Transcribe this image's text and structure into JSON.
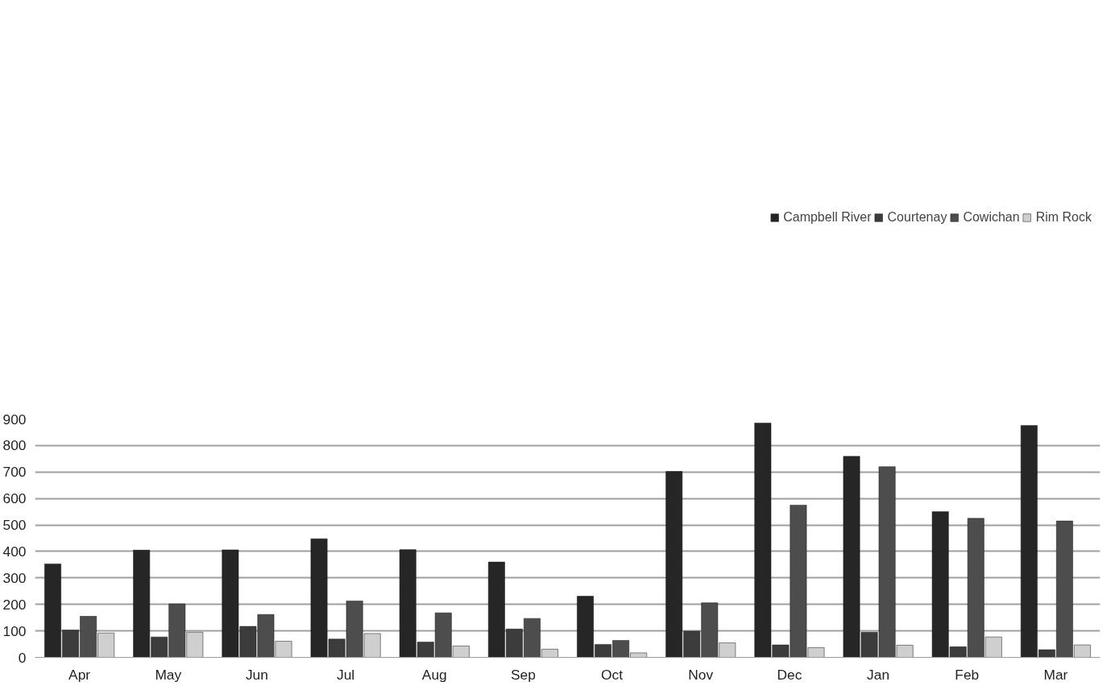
{
  "chart_data": {
    "type": "bar",
    "categories": [
      "Apr",
      "May",
      "Jun",
      "Jul",
      "Aug",
      "Sep",
      "Oct",
      "Nov",
      "Dec",
      "Jan",
      "Feb",
      "Mar"
    ],
    "series": [
      {
        "name": "Campbell River",
        "color": "#262626",
        "values": [
          353,
          405,
          406,
          448,
          407,
          360,
          231,
          702,
          885,
          759,
          550,
          876
        ]
      },
      {
        "name": "Courtenay",
        "color": "#3c3c3c",
        "values": [
          103,
          77,
          117,
          69,
          58,
          107,
          49,
          99,
          47,
          95,
          40,
          29
        ]
      },
      {
        "name": "Cowichan",
        "color": "#4d4d4d",
        "values": [
          155,
          202,
          162,
          213,
          168,
          147,
          64,
          206,
          575,
          720,
          525,
          515
        ]
      },
      {
        "name": "Rim Rock",
        "color": "#cfcfcf",
        "values": [
          92,
          95,
          61,
          90,
          43,
          31,
          17,
          55,
          37,
          46,
          77,
          47
        ]
      }
    ],
    "ylim": [
      0,
      900
    ],
    "yticks": [
      0,
      100,
      200,
      300,
      400,
      500,
      600,
      700,
      800,
      900
    ],
    "grid": "y",
    "legend": "top"
  }
}
